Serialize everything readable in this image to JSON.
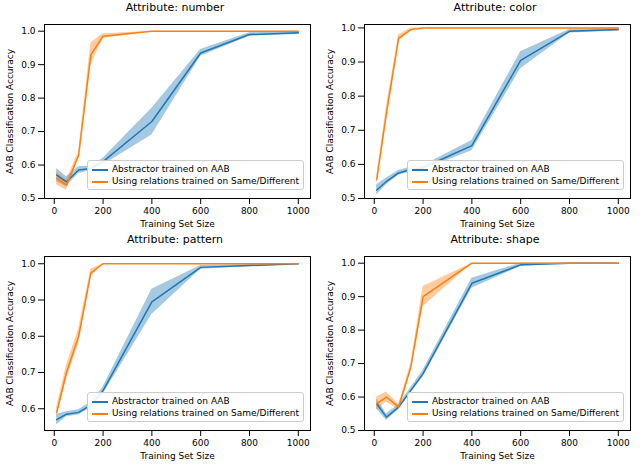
{
  "chart_data": [
    {
      "type": "line",
      "title": "Attribute: number",
      "x_label": "Training Set Size",
      "y_label": "AAB Classification Accuracy",
      "x": [
        10,
        50,
        100,
        150,
        200,
        400,
        600,
        800,
        1000
      ],
      "xlim": [
        -40,
        1050
      ],
      "xticks": [
        0,
        200,
        400,
        600,
        800,
        1000
      ],
      "ylim": [
        0.5,
        1.02
      ],
      "yticks": [
        0.5,
        0.6,
        0.7,
        0.8,
        0.9,
        {
          "value": 1,
          "label": "1.0"
        }
      ],
      "grid": false,
      "legend": "lower right",
      "series": [
        {
          "name": "Abstractor trained on AAB",
          "color": "#1f77b4",
          "values": [
            0.57,
            0.55,
            0.585,
            0.59,
            0.61,
            0.73,
            0.935,
            0.99,
            0.995
          ],
          "lower": [
            0.55,
            0.535,
            0.575,
            0.583,
            0.6,
            0.69,
            0.925,
            0.985,
            0.99
          ],
          "upper": [
            0.59,
            0.565,
            0.595,
            0.597,
            0.62,
            0.77,
            0.945,
            0.995,
            1.0
          ]
        },
        {
          "name": "Using relations trained on Same/Different",
          "color": "#ff7f0e",
          "values": [
            0.56,
            0.54,
            0.63,
            0.93,
            0.985,
            1.0,
            1.0,
            1.0,
            1.0
          ],
          "lower": [
            0.54,
            0.525,
            0.62,
            0.9,
            0.978,
            0.998,
            0.999,
            0.999,
            0.999
          ],
          "upper": [
            0.58,
            0.555,
            0.64,
            0.965,
            0.992,
            1.0,
            1.0,
            1.0,
            1.0
          ]
        }
      ]
    },
    {
      "type": "line",
      "title": "Attribute: color",
      "x_label": "Training Set Size",
      "y_label": "AAB Classification Accuracy",
      "x": [
        10,
        50,
        100,
        150,
        200,
        400,
        600,
        800,
        1000
      ],
      "xlim": [
        -40,
        1050
      ],
      "xticks": [
        0,
        200,
        400,
        600,
        800,
        1000
      ],
      "ylim": [
        0.5,
        1.01
      ],
      "yticks": [
        0.5,
        0.6,
        0.7,
        0.8,
        0.9,
        {
          "value": 1,
          "label": "1.0"
        }
      ],
      "grid": false,
      "legend": "lower right",
      "series": [
        {
          "name": "Abstractor trained on AAB",
          "color": "#1f77b4",
          "values": [
            0.525,
            0.55,
            0.575,
            0.585,
            0.59,
            0.655,
            0.905,
            0.99,
            0.995
          ],
          "lower": [
            0.51,
            0.54,
            0.568,
            0.578,
            0.584,
            0.64,
            0.88,
            0.985,
            0.99
          ],
          "upper": [
            0.54,
            0.56,
            0.582,
            0.592,
            0.596,
            0.67,
            0.93,
            0.995,
            1.0
          ]
        },
        {
          "name": "Using relations trained on Same/Different",
          "color": "#ff7f0e",
          "values": [
            0.555,
            0.75,
            0.97,
            0.995,
            1.0,
            1.0,
            1.0,
            1.0,
            1.0
          ],
          "lower": [
            0.545,
            0.73,
            0.96,
            0.99,
            0.998,
            0.999,
            0.999,
            0.999,
            0.999
          ],
          "upper": [
            0.565,
            0.77,
            0.98,
            1.0,
            1.0,
            1.0,
            1.0,
            1.0,
            1.0
          ]
        }
      ]
    },
    {
      "type": "line",
      "title": "Attribute: pattern",
      "x_label": "Training Set Size",
      "y_label": "AAB Classification Accuracy",
      "x": [
        10,
        50,
        100,
        150,
        200,
        400,
        600,
        800,
        1000
      ],
      "xlim": [
        -40,
        1050
      ],
      "xticks": [
        0,
        200,
        400,
        600,
        800,
        1000
      ],
      "ylim": [
        0.54,
        1.02
      ],
      "yticks": [
        0.6,
        0.7,
        0.8,
        0.9,
        {
          "value": 1,
          "label": "1.0"
        }
      ],
      "grid": false,
      "legend": "lower right",
      "series": [
        {
          "name": "Abstractor trained on AAB",
          "color": "#1f77b4",
          "values": [
            0.57,
            0.585,
            0.59,
            0.61,
            0.65,
            0.895,
            0.99,
            0.995,
            1.0
          ],
          "lower": [
            0.555,
            0.578,
            0.583,
            0.602,
            0.64,
            0.86,
            0.985,
            0.992,
            0.998
          ],
          "upper": [
            0.585,
            0.592,
            0.597,
            0.618,
            0.66,
            0.93,
            0.995,
            0.998,
            1.0
          ]
        },
        {
          "name": "Using relations trained on Same/Different",
          "color": "#ff7f0e",
          "values": [
            0.59,
            0.7,
            0.8,
            0.975,
            1.0,
            1.0,
            1.0,
            1.0,
            1.0
          ],
          "lower": [
            0.575,
            0.68,
            0.78,
            0.965,
            0.998,
            0.999,
            0.999,
            0.999,
            0.999
          ],
          "upper": [
            0.605,
            0.72,
            0.82,
            0.985,
            1.0,
            1.0,
            1.0,
            1.0,
            1.0
          ]
        }
      ]
    },
    {
      "type": "line",
      "title": "Attribute: shape",
      "x_label": "Training Set Size",
      "y_label": "AAB Classification Accuracy",
      "x": [
        10,
        50,
        100,
        150,
        200,
        400,
        600,
        800,
        1000
      ],
      "xlim": [
        -40,
        1050
      ],
      "xticks": [
        0,
        200,
        400,
        600,
        800,
        1000
      ],
      "ylim": [
        0.5,
        1.02
      ],
      "yticks": [
        0.5,
        0.6,
        0.7,
        0.8,
        0.9,
        {
          "value": 1,
          "label": "1.0"
        }
      ],
      "grid": false,
      "legend": "lower right",
      "series": [
        {
          "name": "Abstractor trained on AAB",
          "color": "#1f77b4",
          "values": [
            0.58,
            0.54,
            0.57,
            0.62,
            0.67,
            0.94,
            0.995,
            1.0,
            1.0
          ],
          "lower": [
            0.565,
            0.53,
            0.563,
            0.612,
            0.66,
            0.925,
            0.99,
            0.998,
            0.998
          ],
          "upper": [
            0.595,
            0.55,
            0.577,
            0.628,
            0.68,
            0.955,
            1.0,
            1.0,
            1.0
          ]
        },
        {
          "name": "Using relations trained on Same/Different",
          "color": "#ff7f0e",
          "values": [
            0.58,
            0.6,
            0.57,
            0.69,
            0.9,
            1.0,
            1.0,
            1.0,
            1.0
          ],
          "lower": [
            0.56,
            0.585,
            0.562,
            0.68,
            0.87,
            0.998,
            0.999,
            0.999,
            0.999
          ],
          "upper": [
            0.6,
            0.615,
            0.578,
            0.7,
            0.93,
            1.0,
            1.0,
            1.0,
            1.0
          ]
        }
      ]
    }
  ]
}
